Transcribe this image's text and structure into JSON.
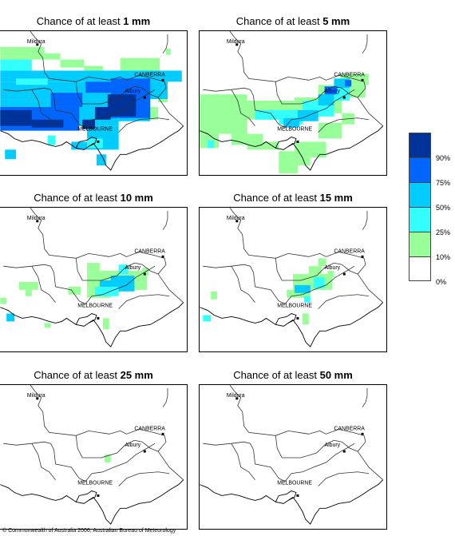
{
  "panels": [
    {
      "title_prefix": "Chance of at least",
      "threshold": "1 mm"
    },
    {
      "title_prefix": "Chance of at least",
      "threshold": "5 mm"
    },
    {
      "title_prefix": "Chance of at least",
      "threshold": "10 mm"
    },
    {
      "title_prefix": "Chance of at least",
      "threshold": "15 mm"
    },
    {
      "title_prefix": "Chance of at least",
      "threshold": "25 mm"
    },
    {
      "title_prefix": "Chance of at least",
      "threshold": "50 mm"
    }
  ],
  "places": {
    "mildura": "Mildura",
    "canberra": "CANBERRA",
    "albury": "Albury",
    "melbourne": "MELBOURNE"
  },
  "legend": {
    "labels": [
      "90%",
      "75%",
      "50%",
      "25%",
      "10%",
      "0%"
    ],
    "colors": [
      "#003399",
      "#0066ff",
      "#00ccff",
      "#33ffff",
      "#99ff99",
      "#ffffff"
    ]
  },
  "copyright": "© Commonwealth of Australia 2006, Australian Bureau of Meteorology"
}
